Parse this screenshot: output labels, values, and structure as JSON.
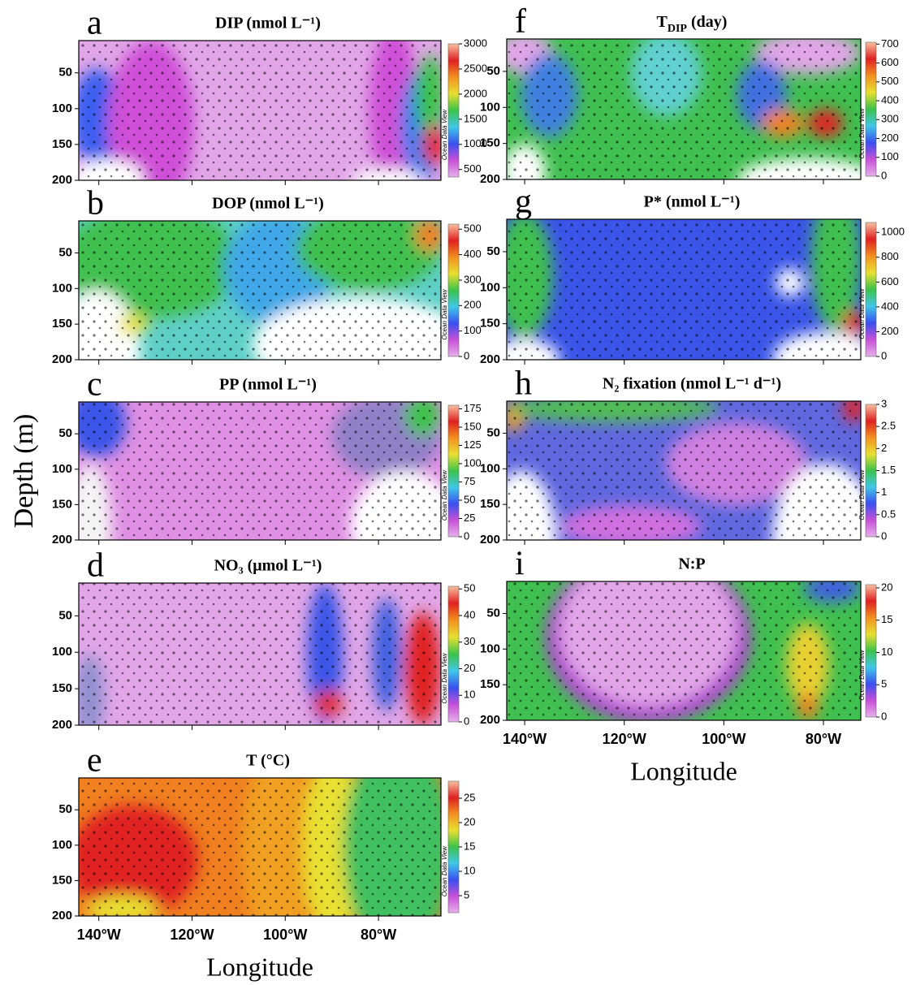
{
  "figure": {
    "ylabel": "Depth (m)"
  },
  "colormap": [
    "#e6b0ea",
    "#c850d8",
    "#3a4ff0",
    "#3fc8e8",
    "#3cc24a",
    "#e8e030",
    "#f39020",
    "#e02020",
    "#f8c0a0"
  ],
  "chart_data": [
    {
      "type": "contour",
      "panel_label": "a",
      "title": "DIP (nmol L⁻¹)",
      "xlim": [
        -144.3,
        -66.6
      ],
      "ylim": [
        5,
        200
      ],
      "y_inverted": true,
      "xticks": [
        {
          "value": -140,
          "label": "140°W"
        },
        {
          "value": -120,
          "label": "120°W"
        },
        {
          "value": -100,
          "label": "100°W"
        },
        {
          "value": -80,
          "label": "80°W"
        }
      ],
      "xtick_labels": false,
      "yticks": [
        50,
        100,
        150,
        200
      ],
      "cbar_lim": [
        350,
        3000
      ],
      "cbar_ticks": [
        500,
        1000,
        1500,
        2000,
        2500,
        3000
      ],
      "colorbar_label": "Ocean Data View"
    },
    {
      "type": "contour",
      "panel_label": "b",
      "title": "DOP (nmol L⁻¹)",
      "xlim": [
        -144.3,
        -66.6
      ],
      "ylim": [
        5,
        200
      ],
      "y_inverted": true,
      "xticks": [
        {
          "value": -140,
          "label": "140°W"
        },
        {
          "value": -120,
          "label": "120°W"
        },
        {
          "value": -100,
          "label": "100°W"
        },
        {
          "value": -80,
          "label": "80°W"
        }
      ],
      "xtick_labels": false,
      "yticks": [
        50,
        100,
        150,
        200
      ],
      "cbar_lim": [
        0,
        520
      ],
      "cbar_ticks": [
        0,
        100,
        200,
        300,
        400,
        500
      ],
      "colorbar_label": "Ocean Data View"
    },
    {
      "type": "contour",
      "panel_label": "c",
      "title": "PP (nmol L⁻¹)",
      "xlim": [
        -144.3,
        -66.6
      ],
      "ylim": [
        5,
        200
      ],
      "y_inverted": true,
      "xticks": [
        {
          "value": -140,
          "label": "140°W"
        },
        {
          "value": -120,
          "label": "120°W"
        },
        {
          "value": -100,
          "label": "100°W"
        },
        {
          "value": -80,
          "label": "80°W"
        }
      ],
      "xtick_labels": false,
      "yticks": [
        50,
        100,
        150,
        200
      ],
      "cbar_lim": [
        0,
        180
      ],
      "cbar_ticks": [
        0,
        25,
        50,
        75,
        100,
        125,
        150,
        175
      ],
      "colorbar_label": "Ocean Data View"
    },
    {
      "type": "contour",
      "panel_label": "d",
      "title": "NO₃ (μmol L⁻¹)",
      "xlim": [
        -144.3,
        -66.6
      ],
      "ylim": [
        5,
        200
      ],
      "y_inverted": true,
      "xticks": [
        {
          "value": -140,
          "label": "140°W"
        },
        {
          "value": -120,
          "label": "120°W"
        },
        {
          "value": -100,
          "label": "100°W"
        },
        {
          "value": -80,
          "label": "80°W"
        }
      ],
      "xtick_labels": false,
      "yticks": [
        50,
        100,
        150,
        200
      ],
      "cbar_lim": [
        0,
        51
      ],
      "cbar_ticks": [
        0,
        10,
        20,
        30,
        40,
        50
      ],
      "colorbar_label": "Ocean Data View"
    },
    {
      "type": "contour",
      "panel_label": "e",
      "title": "T (°C)",
      "xlim": [
        -144.3,
        -66.6
      ],
      "ylim": [
        5,
        200
      ],
      "y_inverted": true,
      "xticks": [
        {
          "value": -140,
          "label": "140°W"
        },
        {
          "value": -120,
          "label": "120°W"
        },
        {
          "value": -100,
          "label": "100°W"
        },
        {
          "value": -80,
          "label": "80°W"
        }
      ],
      "xtick_labels": true,
      "xlabel": "Longitude",
      "yticks": [
        50,
        100,
        150,
        200
      ],
      "cbar_lim": [
        1.5,
        28.5
      ],
      "cbar_ticks": [
        5,
        10,
        15,
        20,
        25
      ],
      "colorbar_label": "Ocean Data View"
    },
    {
      "type": "contour",
      "panel_label": "f",
      "title": [
        {
          "text": "T"
        },
        {
          "text": "DIP",
          "style": "sub"
        },
        {
          "text": " (day)"
        }
      ],
      "xlim": [
        -143.6,
        -72.5
      ],
      "ylim": [
        5,
        200
      ],
      "y_inverted": true,
      "xticks": [
        {
          "value": -140,
          "label": "140°W"
        },
        {
          "value": -120,
          "label": "120°W"
        },
        {
          "value": -100,
          "label": "100°W"
        },
        {
          "value": -80,
          "label": "80°W"
        }
      ],
      "xtick_labels": false,
      "yticks": [
        50,
        100,
        150,
        200
      ],
      "cbar_lim": [
        0,
        710
      ],
      "cbar_ticks": [
        0,
        100,
        200,
        300,
        400,
        500,
        600,
        700
      ],
      "colorbar_label": "Ocean Data View"
    },
    {
      "type": "contour",
      "panel_label": "g",
      "title": "P* (nmol L⁻¹)",
      "xlim": [
        -143.6,
        -72.5
      ],
      "ylim": [
        5,
        200
      ],
      "y_inverted": true,
      "xticks": [
        {
          "value": -140,
          "label": "140°W"
        },
        {
          "value": -120,
          "label": "120°W"
        },
        {
          "value": -100,
          "label": "100°W"
        },
        {
          "value": -80,
          "label": "80°W"
        }
      ],
      "xtick_labels": false,
      "yticks": [
        50,
        100,
        150,
        200
      ],
      "cbar_lim": [
        0,
        1080
      ],
      "cbar_ticks": [
        0,
        200,
        400,
        600,
        800,
        1000
      ],
      "colorbar_label": "Ocean Data View"
    },
    {
      "type": "contour",
      "panel_label": "h",
      "title": "N₂ fixation (nmol L⁻¹ d⁻¹)",
      "xlim": [
        -143.6,
        -72.5
      ],
      "ylim": [
        5,
        200
      ],
      "y_inverted": true,
      "xticks": [
        {
          "value": -140,
          "label": "140°W"
        },
        {
          "value": -120,
          "label": "120°W"
        },
        {
          "value": -100,
          "label": "100°W"
        },
        {
          "value": -80,
          "label": "80°W"
        }
      ],
      "xtick_labels": false,
      "yticks": [
        50,
        100,
        150,
        200
      ],
      "cbar_lim": [
        0,
        3
      ],
      "cbar_ticks": [
        0,
        0.5,
        1,
        1.5,
        2,
        2.5,
        3
      ],
      "colorbar_label": "Ocean Data View"
    },
    {
      "type": "contour",
      "panel_label": "i",
      "title": "N:P",
      "xlim": [
        -143.6,
        -72.5
      ],
      "ylim": [
        5,
        200
      ],
      "y_inverted": true,
      "xticks": [
        {
          "value": -140,
          "label": "140°W"
        },
        {
          "value": -120,
          "label": "120°W"
        },
        {
          "value": -100,
          "label": "100°W"
        },
        {
          "value": -80,
          "label": "80°W"
        }
      ],
      "xtick_labels": true,
      "xlabel": "Longitude",
      "yticks": [
        50,
        100,
        150,
        200
      ],
      "cbar_lim": [
        0,
        20.5
      ],
      "cbar_ticks": [
        0,
        5,
        10,
        15,
        20
      ],
      "colorbar_label": "Ocean Data View"
    }
  ]
}
